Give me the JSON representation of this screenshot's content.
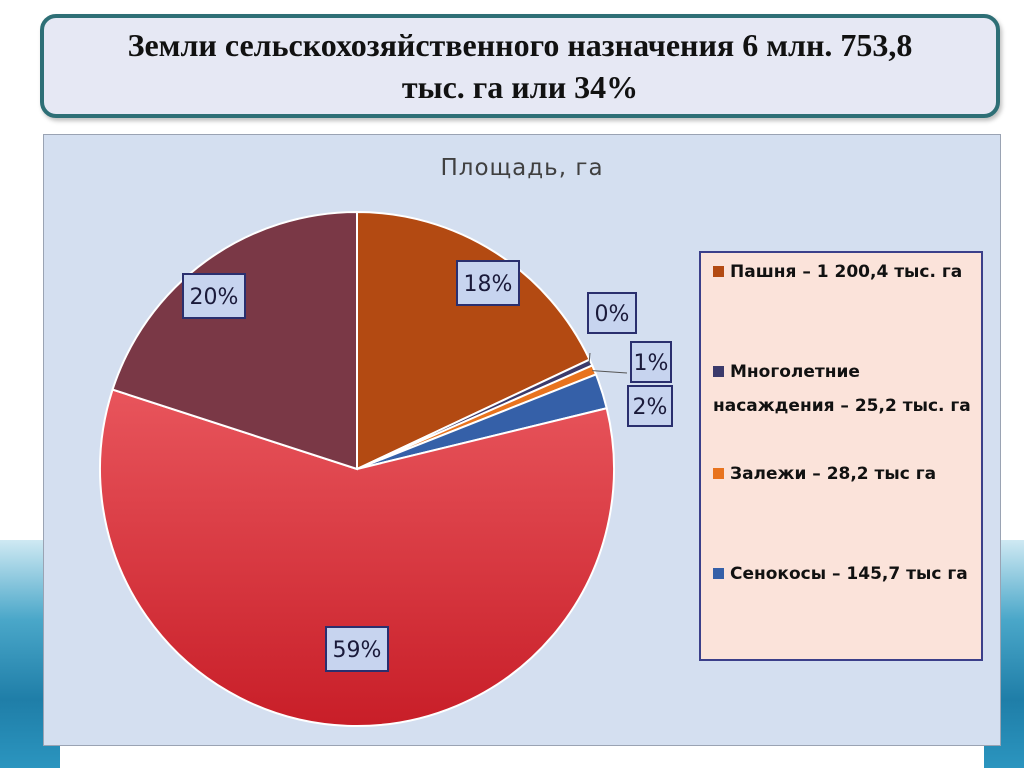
{
  "slide": {
    "title": "Земли сельскохозяйственного назначения 6 млн. 753,8 тыс. га или 34%"
  },
  "chart_data": {
    "type": "pie",
    "title": "Площадь, га",
    "slices": [
      {
        "label": "Пашня – 1 200,4 тыс. га",
        "value": 18,
        "display": "18%",
        "color": "#b34a12"
      },
      {
        "label": "Многолетние насаждения – 25,2 тыс. га",
        "value": 0.4,
        "display": "0%",
        "color": "#3b3a6b"
      },
      {
        "label": "Залежи – 28,2 тыс га",
        "value": 0.6,
        "display": "1%",
        "color": "#e8731e"
      },
      {
        "label": "Сенокосы – 145,7 тыс га",
        "value": 2.2,
        "display": "2%",
        "color": "#3560a8"
      },
      {
        "label": "",
        "value": 58.8,
        "display": "59%",
        "color": "#d9333b"
      },
      {
        "label": "",
        "value": 20,
        "display": "20%",
        "color": "#7a3846"
      }
    ],
    "legend_position": "right"
  }
}
